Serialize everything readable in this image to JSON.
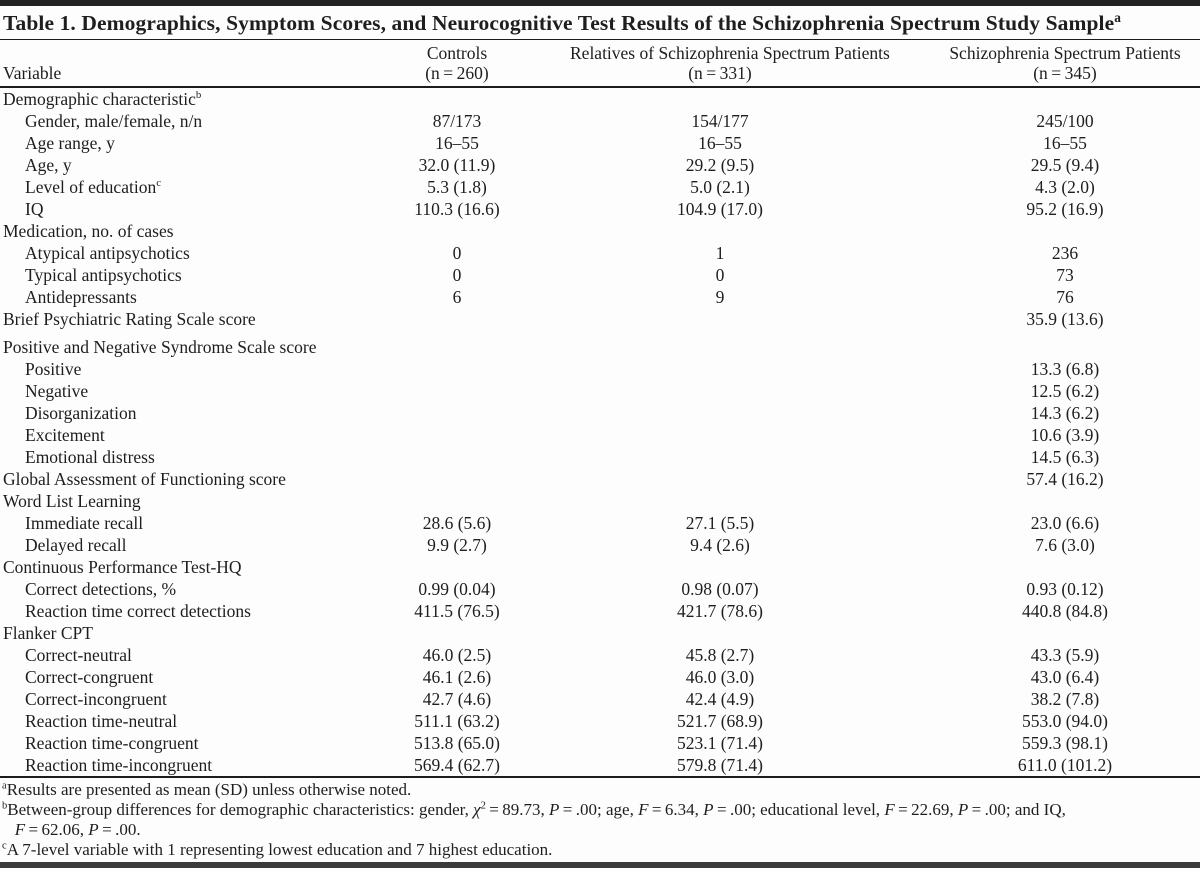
{
  "title": {
    "text": "Table 1. Demographics, Symptom Scores, and Neurocognitive Test Results of the Schizophrenia Spectrum Study Sample",
    "sup": "a"
  },
  "columns": [
    {
      "label": "Variable",
      "n": ""
    },
    {
      "label": "Controls",
      "n": "(n = 260)"
    },
    {
      "label": "Relatives of Schizophrenia Spectrum Patients",
      "n": "(n = 331)"
    },
    {
      "label": "Schizophrenia Spectrum Patients",
      "n": "(n = 345)"
    }
  ],
  "rows": [
    {
      "label": "Demographic characteristic",
      "sup": "b",
      "indent": false,
      "gap": false,
      "values": [
        "",
        "",
        ""
      ]
    },
    {
      "label": "Gender, male/female, n/n",
      "indent": true,
      "gap": false,
      "values": [
        "87/173",
        "154/177",
        "245/100"
      ]
    },
    {
      "label": "Age range, y",
      "indent": true,
      "gap": false,
      "values": [
        "16–55",
        "16–55",
        "16–55"
      ]
    },
    {
      "label": "Age, y",
      "indent": true,
      "gap": false,
      "values": [
        "32.0 (11.9)",
        "29.2 (9.5)",
        "29.5 (9.4)"
      ]
    },
    {
      "label": "Level of education",
      "sup": "c",
      "indent": true,
      "gap": false,
      "values": [
        "5.3 (1.8)",
        "5.0 (2.1)",
        "4.3 (2.0)"
      ]
    },
    {
      "label": "IQ",
      "indent": true,
      "gap": false,
      "values": [
        "110.3 (16.6)",
        "104.9 (17.0)",
        "95.2 (16.9)"
      ]
    },
    {
      "label": "Medication, no. of cases",
      "indent": false,
      "gap": false,
      "values": [
        "",
        "",
        ""
      ]
    },
    {
      "label": "Atypical antipsychotics",
      "indent": true,
      "gap": false,
      "values": [
        "0",
        "1",
        "236"
      ]
    },
    {
      "label": "Typical antipsychotics",
      "indent": true,
      "gap": false,
      "values": [
        "0",
        "0",
        "73"
      ]
    },
    {
      "label": "Antidepressants",
      "indent": true,
      "gap": false,
      "values": [
        "6",
        "9",
        "76"
      ]
    },
    {
      "label": "Brief Psychiatric Rating Scale score",
      "indent": false,
      "gap": false,
      "values": [
        "",
        "",
        "35.9 (13.6)"
      ]
    },
    {
      "label": "Positive and Negative Syndrome Scale score",
      "indent": false,
      "gap": true,
      "values": [
        "",
        "",
        ""
      ]
    },
    {
      "label": "Positive",
      "indent": true,
      "gap": false,
      "values": [
        "",
        "",
        "13.3 (6.8)"
      ]
    },
    {
      "label": "Negative",
      "indent": true,
      "gap": false,
      "values": [
        "",
        "",
        "12.5 (6.2)"
      ]
    },
    {
      "label": "Disorganization",
      "indent": true,
      "gap": false,
      "values": [
        "",
        "",
        "14.3 (6.2)"
      ]
    },
    {
      "label": "Excitement",
      "indent": true,
      "gap": false,
      "values": [
        "",
        "",
        "10.6 (3.9)"
      ]
    },
    {
      "label": "Emotional distress",
      "indent": true,
      "gap": false,
      "values": [
        "",
        "",
        "14.5 (6.3)"
      ]
    },
    {
      "label": "Global Assessment of Functioning score",
      "indent": false,
      "gap": false,
      "values": [
        "",
        "",
        "57.4 (16.2)"
      ]
    },
    {
      "label": "Word List Learning",
      "indent": false,
      "gap": false,
      "values": [
        "",
        "",
        ""
      ]
    },
    {
      "label": "Immediate recall",
      "indent": true,
      "gap": false,
      "values": [
        "28.6 (5.6)",
        "27.1 (5.5)",
        "23.0 (6.6)"
      ]
    },
    {
      "label": "Delayed recall",
      "indent": true,
      "gap": false,
      "values": [
        "9.9 (2.7)",
        "9.4 (2.6)",
        "7.6 (3.0)"
      ]
    },
    {
      "label": "Continuous Performance Test-HQ",
      "indent": false,
      "gap": false,
      "values": [
        "",
        "",
        ""
      ]
    },
    {
      "label": "Correct detections, %",
      "indent": true,
      "gap": false,
      "values": [
        "0.99 (0.04)",
        "0.98 (0.07)",
        "0.93 (0.12)"
      ]
    },
    {
      "label": "Reaction time correct detections",
      "indent": true,
      "gap": false,
      "values": [
        "411.5 (76.5)",
        "421.7 (78.6)",
        "440.8 (84.8)"
      ]
    },
    {
      "label": "Flanker CPT",
      "indent": false,
      "gap": false,
      "values": [
        "",
        "",
        ""
      ]
    },
    {
      "label": "Correct-neutral",
      "indent": true,
      "gap": false,
      "values": [
        "46.0 (2.5)",
        "45.8 (2.7)",
        "43.3 (5.9)"
      ]
    },
    {
      "label": "Correct-congruent",
      "indent": true,
      "gap": false,
      "values": [
        "46.1 (2.6)",
        "46.0 (3.0)",
        "43.0 (6.4)"
      ]
    },
    {
      "label": "Correct-incongruent",
      "indent": true,
      "gap": false,
      "values": [
        "42.7 (4.6)",
        "42.4 (4.9)",
        "38.2 (7.8)"
      ]
    },
    {
      "label": "Reaction time-neutral",
      "indent": true,
      "gap": false,
      "values": [
        "511.1 (63.2)",
        "521.7 (68.9)",
        "553.0 (94.0)"
      ]
    },
    {
      "label": "Reaction time-congruent",
      "indent": true,
      "gap": false,
      "values": [
        "513.8 (65.0)",
        "523.1 (71.4)",
        "559.3 (98.1)"
      ]
    },
    {
      "label": "Reaction time-incongruent",
      "indent": true,
      "gap": false,
      "values": [
        "569.4 (62.7)",
        "579.8 (71.4)",
        "611.0 (101.2)"
      ]
    }
  ],
  "footnotes": [
    {
      "marker": "a",
      "segments": [
        {
          "t": "Results are presented as mean (SD) unless otherwise noted."
        }
      ]
    },
    {
      "marker": "b",
      "segments": [
        {
          "t": "Between-group differences for demographic characteristics: gender, "
        },
        {
          "t": "χ",
          "i": true
        },
        {
          "t": "2",
          "sup": true
        },
        {
          "t": " = 89.73, "
        },
        {
          "t": "P",
          "i": true
        },
        {
          "t": " = .00; age, "
        },
        {
          "t": "F",
          "i": true
        },
        {
          "t": " = 6.34, "
        },
        {
          "t": "P",
          "i": true
        },
        {
          "t": " = .00; educational level, "
        },
        {
          "t": "F",
          "i": true
        },
        {
          "t": " = 22.69, "
        },
        {
          "t": "P",
          "i": true
        },
        {
          "t": " = .00; and IQ,"
        },
        {
          "br": true
        },
        {
          "t": "   "
        },
        {
          "t": "F",
          "i": true
        },
        {
          "t": " = 62.06, "
        },
        {
          "t": "P",
          "i": true
        },
        {
          "t": " = .00."
        }
      ]
    },
    {
      "marker": "c",
      "segments": [
        {
          "t": "A 7-level variable with 1 representing lowest education and 7 highest education."
        }
      ]
    }
  ]
}
